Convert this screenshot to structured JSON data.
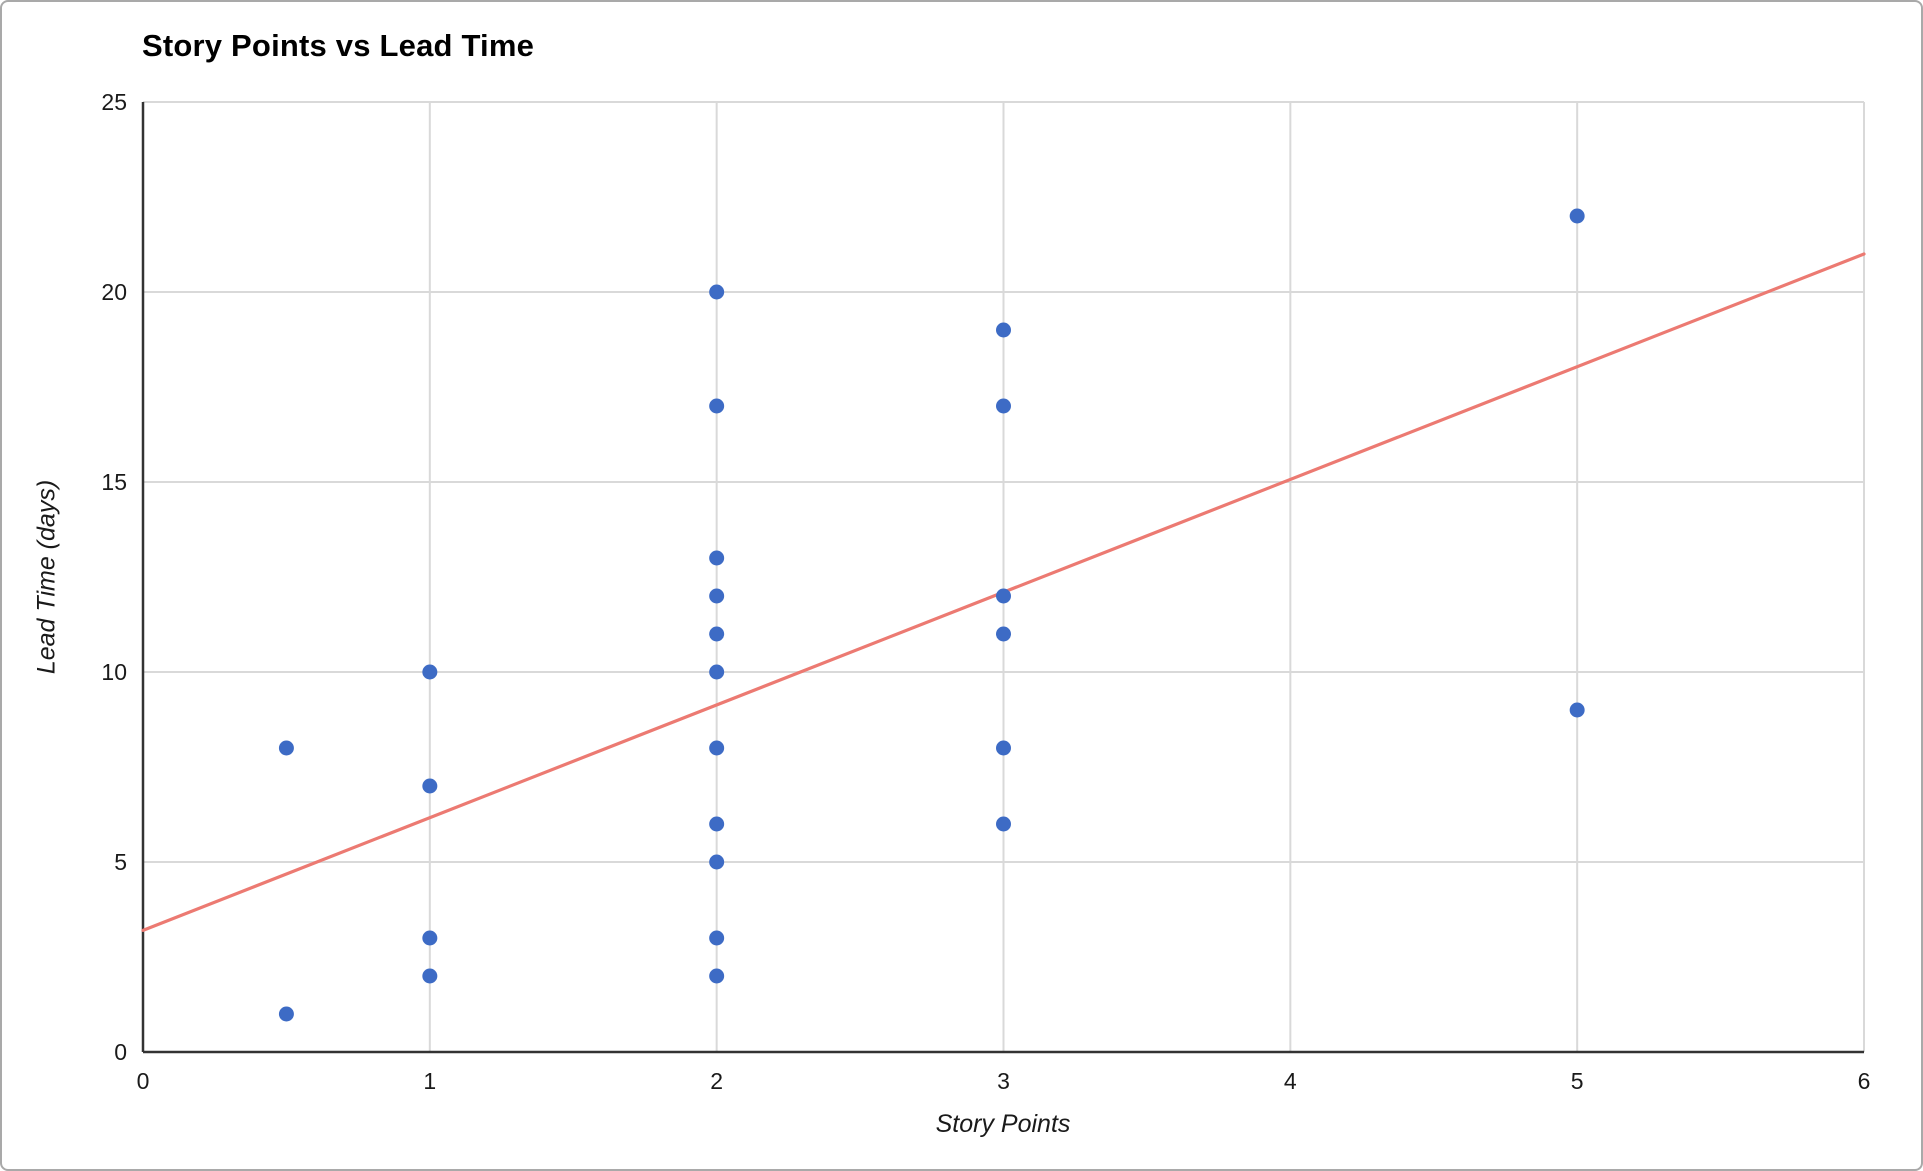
{
  "chart_data": {
    "type": "scatter",
    "title": "Story Points vs Lead Time",
    "xlabel": "Story Points",
    "ylabel": "Lead Time (days)",
    "xlim": [
      0,
      6
    ],
    "ylim": [
      0,
      25
    ],
    "x_ticks": [
      0,
      1,
      2,
      3,
      4,
      5,
      6
    ],
    "y_ticks": [
      0,
      5,
      10,
      15,
      20,
      25
    ],
    "grid": true,
    "legend": "none",
    "points": [
      [
        0.5,
        8
      ],
      [
        0.5,
        1
      ],
      [
        1,
        10
      ],
      [
        1,
        7
      ],
      [
        1,
        3
      ],
      [
        1,
        2
      ],
      [
        2,
        20
      ],
      [
        2,
        17
      ],
      [
        2,
        13
      ],
      [
        2,
        12
      ],
      [
        2,
        11
      ],
      [
        2,
        10
      ],
      [
        2,
        8
      ],
      [
        2,
        6
      ],
      [
        2,
        5
      ],
      [
        2,
        3
      ],
      [
        2,
        2
      ],
      [
        3,
        19
      ],
      [
        3,
        17
      ],
      [
        3,
        12
      ],
      [
        3,
        11
      ],
      [
        3,
        8
      ],
      [
        3,
        6
      ],
      [
        5,
        22
      ],
      [
        5,
        9
      ]
    ],
    "trendline": {
      "x1": 0,
      "y1": 3.2,
      "x2": 6,
      "y2": 21.0
    },
    "colors": {
      "point": "#3d6bc5",
      "trendline": "#ec7a72",
      "gridline": "#d9d9d9",
      "axis": "#333333",
      "tick_text": "#1a1a1a",
      "background": "#ffffff"
    }
  }
}
